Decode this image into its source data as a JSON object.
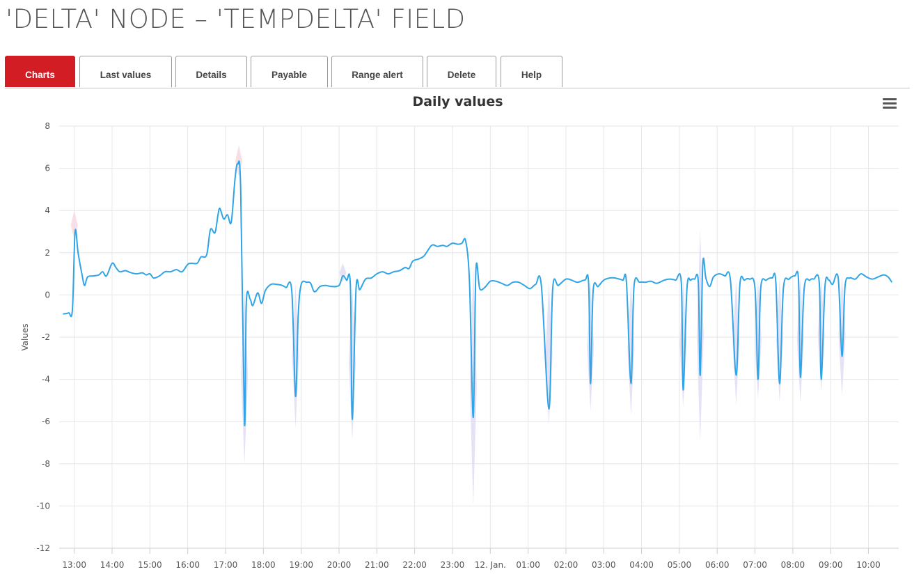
{
  "page": {
    "title": "'DELTA' NODE – 'TEMPDELTA' FIELD"
  },
  "tabs": [
    {
      "label": "Charts",
      "active": true
    },
    {
      "label": "Last values",
      "active": false
    },
    {
      "label": "Details",
      "active": false
    },
    {
      "label": "Payable",
      "active": false
    },
    {
      "label": "Range alert",
      "active": false
    },
    {
      "label": "Delete",
      "active": false
    },
    {
      "label": "Help",
      "active": false
    }
  ],
  "menu_icon": "hamburger-menu-icon",
  "colors": {
    "accent": "#d21d25",
    "line": "#2fa4e7",
    "range_band": "#e3dcf3"
  },
  "chart_data": {
    "type": "line",
    "title": "Daily values",
    "ylabel": "Values",
    "xlabel": "",
    "ylim": [
      -12,
      8
    ],
    "yticks": [
      8,
      6,
      4,
      2,
      0,
      -2,
      -4,
      -6,
      -8,
      -10,
      -12
    ],
    "xlim_hours": [
      12.6,
      34.8
    ],
    "xticks": [
      {
        "label": "13:00",
        "h": 13
      },
      {
        "label": "14:00",
        "h": 14
      },
      {
        "label": "15:00",
        "h": 15
      },
      {
        "label": "16:00",
        "h": 16
      },
      {
        "label": "17:00",
        "h": 17
      },
      {
        "label": "18:00",
        "h": 18
      },
      {
        "label": "19:00",
        "h": 19
      },
      {
        "label": "20:00",
        "h": 20
      },
      {
        "label": "21:00",
        "h": 21
      },
      {
        "label": "22:00",
        "h": 22
      },
      {
        "label": "23:00",
        "h": 23
      },
      {
        "label": "12. Jan.",
        "h": 24
      },
      {
        "label": "01:00",
        "h": 25
      },
      {
        "label": "02:00",
        "h": 26
      },
      {
        "label": "03:00",
        "h": 27
      },
      {
        "label": "04:00",
        "h": 28
      },
      {
        "label": "05:00",
        "h": 29
      },
      {
        "label": "06:00",
        "h": 30
      },
      {
        "label": "07:00",
        "h": 31
      },
      {
        "label": "08:00",
        "h": 32
      },
      {
        "label": "09:00",
        "h": 33
      },
      {
        "label": "10:00",
        "h": 34
      }
    ],
    "grid": true,
    "series": [
      {
        "points": [
          [
            12.7,
            -0.9
          ],
          [
            12.85,
            -0.85
          ],
          [
            12.95,
            -0.7
          ],
          [
            13.02,
            3.0
          ],
          [
            13.1,
            2.0
          ],
          [
            13.2,
            1.0
          ],
          [
            13.27,
            0.45
          ],
          [
            13.35,
            0.85
          ],
          [
            13.5,
            0.9
          ],
          [
            13.65,
            0.95
          ],
          [
            13.75,
            1.1
          ],
          [
            13.85,
            0.9
          ],
          [
            14.0,
            1.5
          ],
          [
            14.1,
            1.3
          ],
          [
            14.2,
            1.1
          ],
          [
            14.35,
            1.15
          ],
          [
            14.5,
            1.05
          ],
          [
            14.65,
            1.0
          ],
          [
            14.8,
            1.05
          ],
          [
            14.9,
            0.95
          ],
          [
            15.0,
            1.0
          ],
          [
            15.1,
            0.8
          ],
          [
            15.25,
            0.9
          ],
          [
            15.4,
            1.1
          ],
          [
            15.55,
            1.1
          ],
          [
            15.7,
            1.2
          ],
          [
            15.85,
            1.1
          ],
          [
            16.0,
            1.45
          ],
          [
            16.1,
            1.5
          ],
          [
            16.25,
            1.5
          ],
          [
            16.35,
            1.8
          ],
          [
            16.5,
            1.9
          ],
          [
            16.6,
            3.1
          ],
          [
            16.72,
            2.95
          ],
          [
            16.8,
            3.8
          ],
          [
            16.85,
            4.1
          ],
          [
            16.95,
            3.6
          ],
          [
            17.05,
            3.8
          ],
          [
            17.15,
            3.45
          ],
          [
            17.25,
            5.5
          ],
          [
            17.32,
            6.2
          ],
          [
            17.4,
            5.0
          ],
          [
            17.5,
            -6.1
          ],
          [
            17.55,
            -0.3
          ],
          [
            17.65,
            -0.2
          ],
          [
            17.72,
            -0.5
          ],
          [
            17.85,
            0.1
          ],
          [
            17.95,
            -0.4
          ],
          [
            18.05,
            0.2
          ],
          [
            18.2,
            0.5
          ],
          [
            18.35,
            0.5
          ],
          [
            18.5,
            0.45
          ],
          [
            18.6,
            0.35
          ],
          [
            18.75,
            0.2
          ],
          [
            18.85,
            -4.8
          ],
          [
            18.92,
            -1.0
          ],
          [
            19.0,
            0.5
          ],
          [
            19.15,
            0.6
          ],
          [
            19.25,
            0.55
          ],
          [
            19.35,
            0.15
          ],
          [
            19.5,
            0.4
          ],
          [
            19.65,
            0.45
          ],
          [
            19.8,
            0.4
          ],
          [
            20.0,
            0.45
          ],
          [
            20.1,
            0.9
          ],
          [
            20.2,
            0.7
          ],
          [
            20.3,
            0.45
          ],
          [
            20.35,
            -5.9
          ],
          [
            20.45,
            0.3
          ],
          [
            20.55,
            0.25
          ],
          [
            20.7,
            0.75
          ],
          [
            20.85,
            0.8
          ],
          [
            21.0,
            1.0
          ],
          [
            21.15,
            1.1
          ],
          [
            21.3,
            1.0
          ],
          [
            21.45,
            1.1
          ],
          [
            21.6,
            1.15
          ],
          [
            21.75,
            1.3
          ],
          [
            21.85,
            1.25
          ],
          [
            21.95,
            1.6
          ],
          [
            22.1,
            1.7
          ],
          [
            22.25,
            1.85
          ],
          [
            22.45,
            2.35
          ],
          [
            22.6,
            2.3
          ],
          [
            22.75,
            2.35
          ],
          [
            22.85,
            2.3
          ],
          [
            23.0,
            2.45
          ],
          [
            23.15,
            2.4
          ],
          [
            23.25,
            2.45
          ],
          [
            23.35,
            2.55
          ],
          [
            23.45,
            0.6
          ],
          [
            23.55,
            -5.8
          ],
          [
            23.62,
            1.2
          ],
          [
            23.72,
            0.3
          ],
          [
            23.85,
            0.35
          ],
          [
            24.0,
            0.65
          ],
          [
            24.15,
            0.65
          ],
          [
            24.3,
            0.55
          ],
          [
            24.45,
            0.45
          ],
          [
            24.6,
            0.6
          ],
          [
            24.75,
            0.6
          ],
          [
            24.9,
            0.45
          ],
          [
            25.05,
            0.3
          ],
          [
            25.2,
            0.5
          ],
          [
            25.35,
            0.45
          ],
          [
            25.55,
            -5.4
          ],
          [
            25.65,
            0.3
          ],
          [
            25.8,
            0.45
          ],
          [
            26.0,
            0.75
          ],
          [
            26.15,
            0.7
          ],
          [
            26.3,
            0.6
          ],
          [
            26.5,
            0.7
          ],
          [
            26.6,
            0.55
          ],
          [
            26.65,
            -4.2
          ],
          [
            26.72,
            0.2
          ],
          [
            26.85,
            0.4
          ],
          [
            27.0,
            0.7
          ],
          [
            27.15,
            0.8
          ],
          [
            27.3,
            0.8
          ],
          [
            27.5,
            0.7
          ],
          [
            27.6,
            0.6
          ],
          [
            27.72,
            -4.2
          ],
          [
            27.8,
            0.4
          ],
          [
            27.95,
            0.6
          ],
          [
            28.1,
            0.6
          ],
          [
            28.25,
            0.65
          ],
          [
            28.4,
            0.55
          ],
          [
            28.6,
            0.7
          ],
          [
            28.75,
            0.75
          ],
          [
            28.9,
            0.7
          ],
          [
            29.05,
            0.6
          ],
          [
            29.1,
            -4.5
          ],
          [
            29.2,
            0.3
          ],
          [
            29.3,
            0.7
          ],
          [
            29.4,
            0.75
          ],
          [
            29.5,
            0.6
          ],
          [
            29.55,
            -3.8
          ],
          [
            29.62,
            1.5
          ],
          [
            29.7,
            0.8
          ],
          [
            29.8,
            0.4
          ],
          [
            29.9,
            0.85
          ],
          [
            30.05,
            1.0
          ],
          [
            30.2,
            0.9
          ],
          [
            30.35,
            0.7
          ],
          [
            30.5,
            -3.8
          ],
          [
            30.6,
            0.5
          ],
          [
            30.72,
            0.7
          ],
          [
            30.85,
            0.75
          ],
          [
            31.0,
            0.3
          ],
          [
            31.08,
            -4.0
          ],
          [
            31.15,
            0.3
          ],
          [
            31.3,
            0.7
          ],
          [
            31.45,
            0.8
          ],
          [
            31.55,
            0.6
          ],
          [
            31.65,
            -4.2
          ],
          [
            31.75,
            0.3
          ],
          [
            31.9,
            0.75
          ],
          [
            32.05,
            0.9
          ],
          [
            32.15,
            0.7
          ],
          [
            32.2,
            -3.9
          ],
          [
            32.3,
            0.3
          ],
          [
            32.45,
            0.7
          ],
          [
            32.55,
            0.75
          ],
          [
            32.7,
            0.55
          ],
          [
            32.75,
            -4.0
          ],
          [
            32.85,
            0.4
          ],
          [
            32.95,
            0.7
          ],
          [
            33.05,
            0.5
          ],
          [
            33.2,
            0.8
          ],
          [
            33.3,
            -2.9
          ],
          [
            33.38,
            0.4
          ],
          [
            33.5,
            0.8
          ],
          [
            33.65,
            0.75
          ],
          [
            33.8,
            1.0
          ],
          [
            33.95,
            0.85
          ],
          [
            34.1,
            0.75
          ],
          [
            34.25,
            0.85
          ],
          [
            34.4,
            0.95
          ],
          [
            34.52,
            0.85
          ],
          [
            34.62,
            0.6
          ]
        ]
      }
    ],
    "range_band": [
      {
        "h": 13.0,
        "lo": 2.6,
        "hi": 4.0
      },
      {
        "h": 17.35,
        "lo": 5.6,
        "hi": 7.1
      },
      {
        "h": 17.5,
        "lo": -8.0,
        "hi": 0.3
      },
      {
        "h": 18.85,
        "lo": -6.3,
        "hi": 0.5
      },
      {
        "h": 20.1,
        "lo": 0.6,
        "hi": 1.5
      },
      {
        "h": 20.35,
        "lo": -6.9,
        "hi": 0.4
      },
      {
        "h": 23.55,
        "lo": -10.0,
        "hi": 1.4
      },
      {
        "h": 25.55,
        "lo": -6.2,
        "hi": 0.6
      },
      {
        "h": 26.65,
        "lo": -5.5,
        "hi": 0.6
      },
      {
        "h": 27.72,
        "lo": -5.7,
        "hi": 0.6
      },
      {
        "h": 29.1,
        "lo": -5.3,
        "hi": 0.7
      },
      {
        "h": 29.55,
        "lo": -7.0,
        "hi": 3.1
      },
      {
        "h": 30.5,
        "lo": -5.2,
        "hi": 0.7
      },
      {
        "h": 31.08,
        "lo": -4.9,
        "hi": 0.7
      },
      {
        "h": 31.65,
        "lo": -5.1,
        "hi": 0.8
      },
      {
        "h": 32.2,
        "lo": -5.1,
        "hi": 0.9
      },
      {
        "h": 32.75,
        "lo": -4.6,
        "hi": 0.8
      },
      {
        "h": 33.3,
        "lo": -4.8,
        "hi": 0.9
      }
    ]
  }
}
